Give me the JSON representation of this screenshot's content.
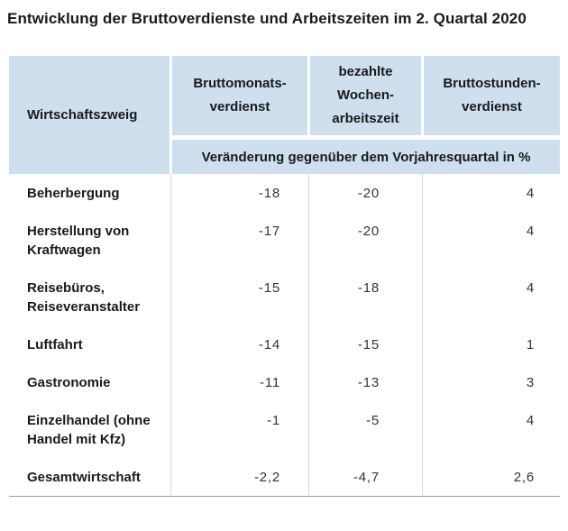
{
  "title": "Entwicklung der Bruttoverdienste und Arbeitszeiten im 2. Quartal 2020",
  "table": {
    "row_header": "Wirtschaftszweig",
    "columns": [
      "Bruttomonats-\nverdienst",
      "bezahlte\nWochen-\narbeitszeit",
      "Bruttostunden-\nverdienst"
    ],
    "subheader": "Veränderung gegenüber dem Vorjahresquartal in %",
    "rows": [
      {
        "label": "Beherbergung",
        "values": [
          "-18",
          "-20",
          "4"
        ]
      },
      {
        "label": "Herstellung von\nKraftwagen",
        "values": [
          "-17",
          "-20",
          "4"
        ]
      },
      {
        "label": "Reisebüros,\nReiseveranstalter",
        "values": [
          "-15",
          "-18",
          "4"
        ]
      },
      {
        "label": "Luftfahrt",
        "values": [
          "-14",
          "-15",
          "1"
        ]
      },
      {
        "label": "Gastronomie",
        "values": [
          "-11",
          "-13",
          "3"
        ]
      },
      {
        "label": "Einzelhandel (ohne\nHandel mit Kfz)",
        "values": [
          "-1",
          "-5",
          "4"
        ]
      },
      {
        "label": "Gesamtwirtschaft",
        "values": [
          "-2,2",
          "-4,7",
          "2,6"
        ]
      }
    ]
  },
  "colors": {
    "header_background": "#cfdfee",
    "title_text": "#1a1a1a",
    "number_text": "#333333",
    "bottom_border": "#9b9b9b",
    "gridline": "#d9d9d9"
  },
  "chart_data": {
    "type": "table",
    "title": "Entwicklung der Bruttoverdienste und Arbeitszeiten im 2. Quartal 2020",
    "unit": "Veränderung gegenüber dem Vorjahresquartal in %",
    "columns": [
      "Wirtschaftszweig",
      "Bruttomonatsverdienst",
      "bezahlte Wochenarbeitszeit",
      "Bruttostundenverdienst"
    ],
    "rows": [
      [
        "Beherbergung",
        -18,
        -20,
        4
      ],
      [
        "Herstellung von Kraftwagen",
        -17,
        -20,
        4
      ],
      [
        "Reisebüros, Reiseveranstalter",
        -15,
        -18,
        4
      ],
      [
        "Luftfahrt",
        -14,
        -15,
        1
      ],
      [
        "Gastronomie",
        -11,
        -13,
        3
      ],
      [
        "Einzelhandel (ohne Handel mit Kfz)",
        -1,
        -5,
        4
      ],
      [
        "Gesamtwirtschaft",
        -2.2,
        -4.7,
        2.6
      ]
    ]
  }
}
